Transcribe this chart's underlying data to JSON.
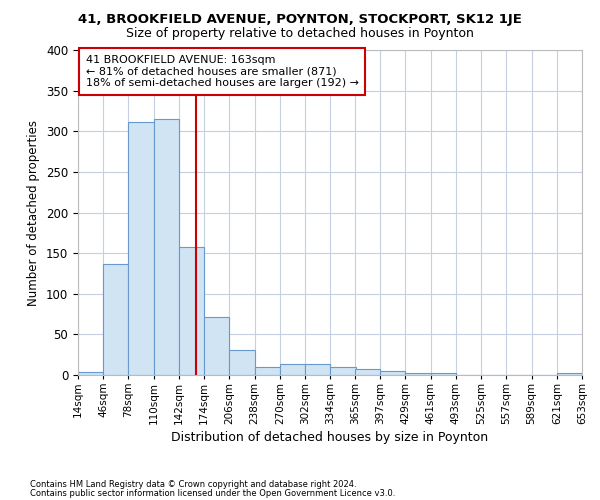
{
  "title1": "41, BROOKFIELD AVENUE, POYNTON, STOCKPORT, SK12 1JE",
  "title2": "Size of property relative to detached houses in Poynton",
  "xlabel": "Distribution of detached houses by size in Poynton",
  "ylabel": "Number of detached properties",
  "footnote1": "Contains HM Land Registry data © Crown copyright and database right 2024.",
  "footnote2": "Contains public sector information licensed under the Open Government Licence v3.0.",
  "annotation_line1": "41 BROOKFIELD AVENUE: 163sqm",
  "annotation_line2": "← 81% of detached houses are smaller (871)",
  "annotation_line3": "18% of semi-detached houses are larger (192) →",
  "property_size": 163,
  "bar_color": "#d0e4f4",
  "bar_edge_color": "#6699cc",
  "vline_color": "#cc0000",
  "annotation_box_edge_color": "#cc0000",
  "bg_color": "#ffffff",
  "grid_color": "#c5cfe0",
  "bins": [
    14,
    46,
    78,
    110,
    142,
    174,
    206,
    238,
    270,
    302,
    334,
    365,
    397,
    429,
    461,
    493,
    525,
    557,
    589,
    621,
    653
  ],
  "bin_labels": [
    "14sqm",
    "46sqm",
    "78sqm",
    "110sqm",
    "142sqm",
    "174sqm",
    "206sqm",
    "238sqm",
    "270sqm",
    "302sqm",
    "334sqm",
    "365sqm",
    "397sqm",
    "429sqm",
    "461sqm",
    "493sqm",
    "525sqm",
    "557sqm",
    "589sqm",
    "621sqm",
    "653sqm"
  ],
  "counts": [
    4,
    137,
    312,
    315,
    158,
    71,
    31,
    10,
    14,
    14,
    10,
    8,
    5,
    3,
    3,
    0,
    0,
    0,
    0,
    3
  ],
  "ylim": [
    0,
    400
  ],
  "yticks": [
    0,
    50,
    100,
    150,
    200,
    250,
    300,
    350,
    400
  ]
}
